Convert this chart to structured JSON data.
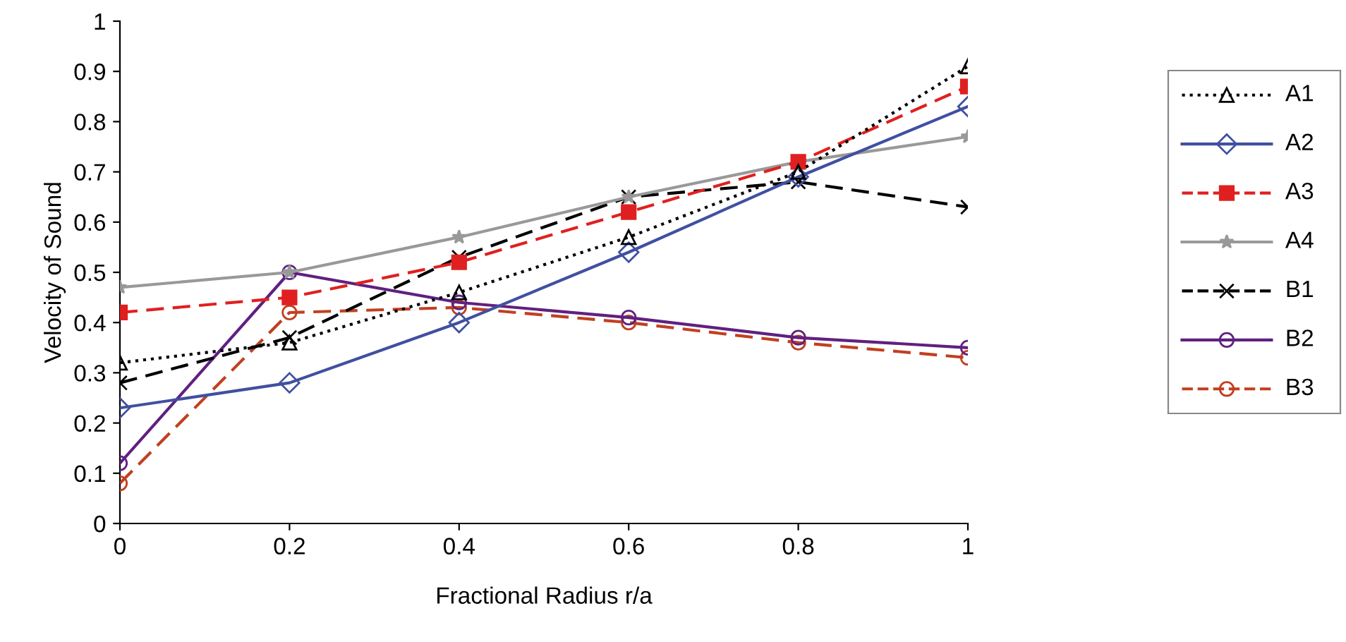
{
  "chart_data": {
    "type": "line",
    "xlabel": "Fractional Radius r/a",
    "ylabel": "Velocity of Sound",
    "x": [
      0,
      0.2,
      0.4,
      0.6,
      0.8,
      1
    ],
    "xlim": [
      0,
      1
    ],
    "xticks": [
      0,
      0.2,
      0.4,
      0.6,
      0.8,
      1
    ],
    "ylim": [
      0,
      1
    ],
    "yticks": [
      0,
      0.1,
      0.2,
      0.3,
      0.4,
      0.5,
      0.6,
      0.7,
      0.8,
      0.9,
      1
    ],
    "grid": false,
    "legend": "right",
    "series": [
      {
        "name": "A1",
        "color": "#000000",
        "marker": "triangle",
        "line_style": "dotted",
        "values": [
          0.32,
          0.36,
          0.46,
          0.57,
          0.7,
          0.91
        ]
      },
      {
        "name": "A2",
        "color": "#4050a0",
        "marker": "diamond",
        "line_style": "solid",
        "values": [
          0.23,
          0.28,
          0.4,
          0.54,
          0.69,
          0.83
        ]
      },
      {
        "name": "A3",
        "color": "#e02020",
        "marker": "square",
        "line_style": "dashed",
        "values": [
          0.42,
          0.45,
          0.52,
          0.62,
          0.72,
          0.87
        ]
      },
      {
        "name": "A4",
        "color": "#999999",
        "marker": "star",
        "line_style": "solid",
        "values": [
          0.47,
          0.5,
          0.57,
          0.65,
          0.72,
          0.77
        ]
      },
      {
        "name": "B1",
        "color": "#000000",
        "marker": "cross",
        "line_style": "dashed",
        "values": [
          0.28,
          0.37,
          0.53,
          0.65,
          0.68,
          0.63
        ]
      },
      {
        "name": "B2",
        "color": "#602080",
        "marker": "circle",
        "line_style": "solid",
        "values": [
          0.12,
          0.5,
          0.44,
          0.41,
          0.37,
          0.35
        ]
      },
      {
        "name": "B3",
        "color": "#c04020",
        "marker": "circle",
        "line_style": "dashed",
        "values": [
          0.08,
          0.42,
          0.43,
          0.4,
          0.36,
          0.33
        ]
      }
    ]
  }
}
